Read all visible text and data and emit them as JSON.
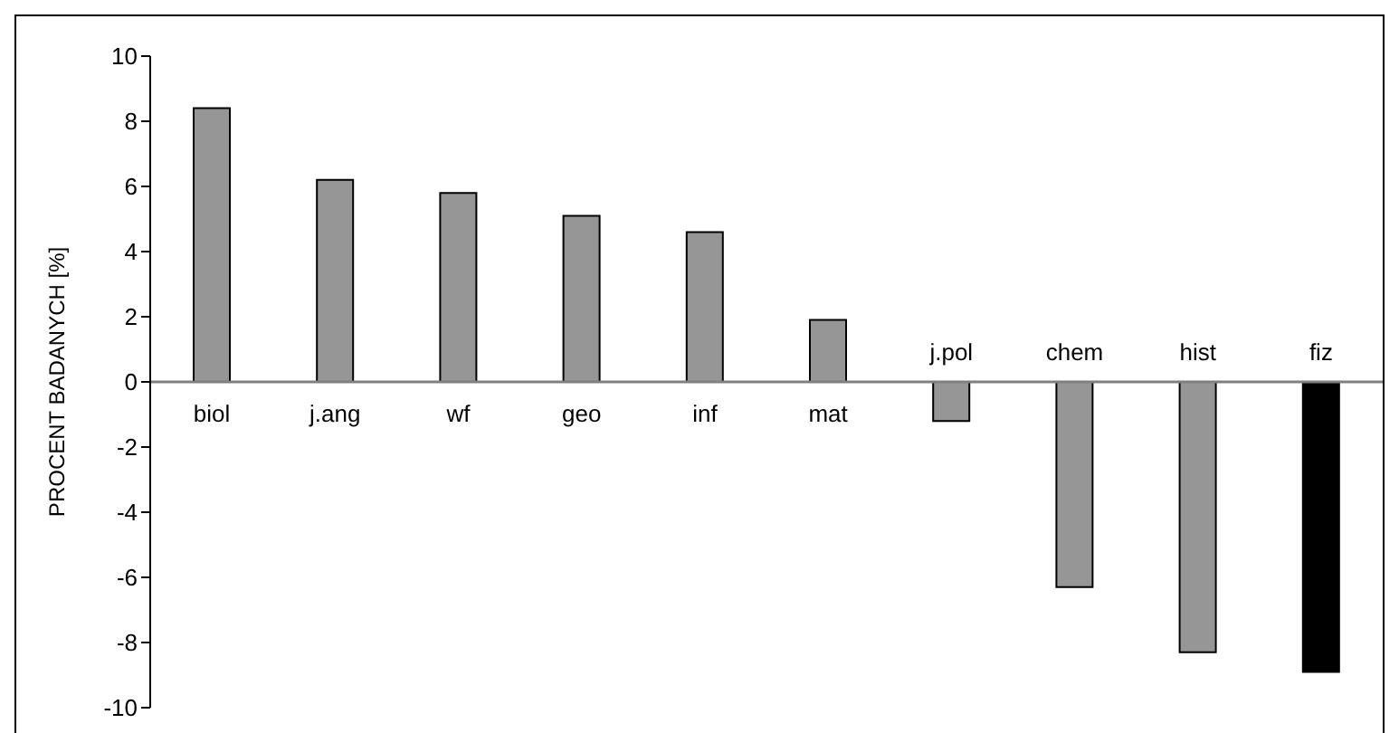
{
  "chart_data": {
    "type": "bar",
    "ylabel": "PROCENT BADANYCH [%]",
    "categories": [
      "biol",
      "j.ang",
      "wf",
      "geo",
      "inf",
      "mat",
      "j.pol",
      "chem",
      "hist",
      "fiz"
    ],
    "values": [
      8.4,
      6.2,
      5.8,
      5.1,
      4.6,
      1.9,
      -1.2,
      -6.3,
      -8.3,
      -8.9
    ],
    "colors": [
      "#969696",
      "#969696",
      "#969696",
      "#969696",
      "#969696",
      "#969696",
      "#969696",
      "#969696",
      "#969696",
      "#000000"
    ],
    "ylim": [
      -10,
      10
    ],
    "yticks": [
      -10,
      -8,
      -6,
      -4,
      -2,
      0,
      2,
      4,
      6,
      8,
      10
    ],
    "grid": false
  }
}
